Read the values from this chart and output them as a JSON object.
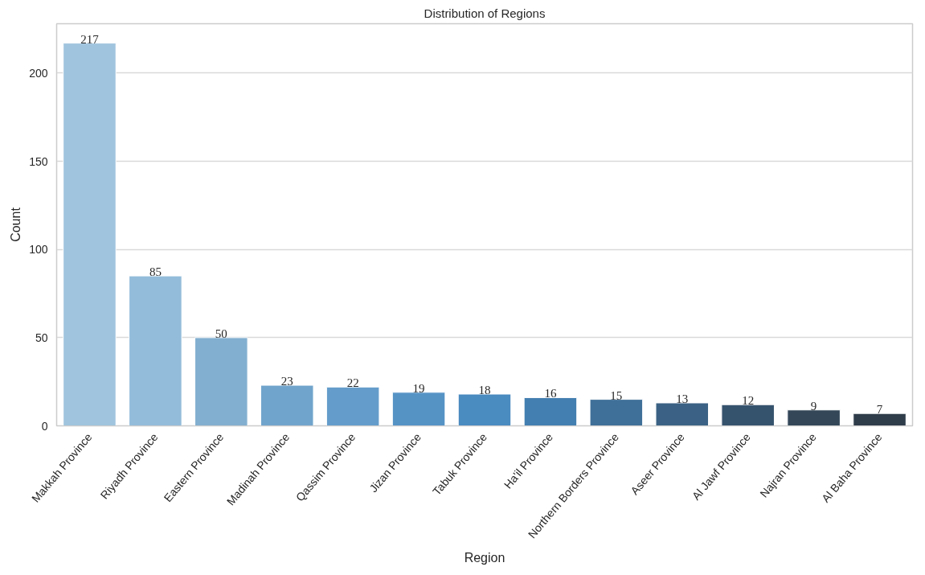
{
  "chart_data": {
    "type": "bar",
    "title": "Distribution of Regions",
    "xlabel": "Region",
    "ylabel": "Count",
    "categories": [
      "Makkah Province",
      "Riyadh Province",
      "Eastern Province",
      "Madinah Province",
      "Qassim Province",
      "Jizan Province",
      "Tabuk Province",
      "Ha'il Province",
      "Northern Borders Province",
      "Aseer Province",
      "Al Jawf Province",
      "Najran Province",
      "Al Baha Province"
    ],
    "values": [
      217,
      85,
      50,
      23,
      22,
      19,
      18,
      16,
      15,
      13,
      12,
      9,
      7
    ],
    "colors": [
      "#a0c4de",
      "#93bcda",
      "#82afd0",
      "#71a4cc",
      "#649dcb",
      "#5593c5",
      "#4a8bc0",
      "#437fb0",
      "#3f7099",
      "#3b6284",
      "#36536d",
      "#334759",
      "#2f3c4a"
    ],
    "ylim": [
      0,
      228
    ],
    "yticks": [
      0,
      50,
      100,
      150,
      200
    ],
    "grid": "y",
    "data_labels": true
  }
}
